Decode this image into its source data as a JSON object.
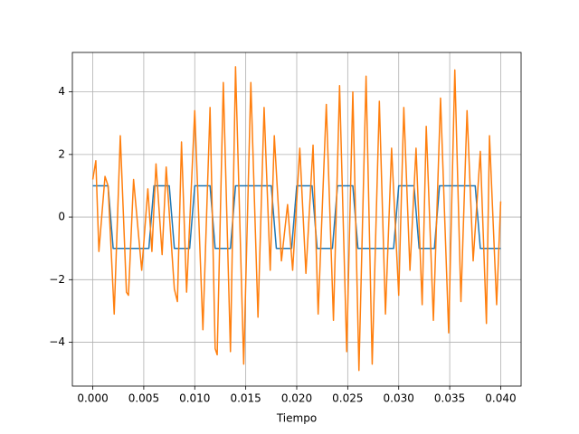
{
  "chart_data": {
    "type": "line",
    "xlabel": "Tiempo",
    "xlim": [
      -0.002,
      0.042
    ],
    "ylim": [
      -5.4,
      5.26
    ],
    "xticks": [
      {
        "value": 0,
        "label": "0.000"
      },
      {
        "value": 0.005,
        "label": "0.005"
      },
      {
        "value": 0.01,
        "label": "0.010"
      },
      {
        "value": 0.015,
        "label": "0.015"
      },
      {
        "value": 0.02,
        "label": "0.020"
      },
      {
        "value": 0.025,
        "label": "0.025"
      },
      {
        "value": 0.03,
        "label": "0.030"
      },
      {
        "value": 0.035,
        "label": "0.035"
      },
      {
        "value": 0.04,
        "label": "0.040"
      }
    ],
    "yticks": [
      {
        "value": -4,
        "label": "−4"
      },
      {
        "value": -2,
        "label": "−2"
      },
      0,
      2,
      4
    ],
    "grid": true,
    "series": [
      {
        "color": "#1f77b4",
        "x": [
          0,
          0.0005,
          0.001,
          0.0015,
          0.002,
          0.0025,
          0.003,
          0.0035,
          0.004,
          0.0045,
          0.005,
          0.0055,
          0.006,
          0.0065,
          0.007,
          0.0075,
          0.008,
          0.0085,
          0.009,
          0.0095,
          0.01,
          0.0105,
          0.011,
          0.0115,
          0.012,
          0.0125,
          0.013,
          0.0135,
          0.014,
          0.0145,
          0.015,
          0.0155,
          0.016,
          0.0165,
          0.017,
          0.0175,
          0.018,
          0.0185,
          0.019,
          0.0195,
          0.02,
          0.0205,
          0.021,
          0.0215,
          0.022,
          0.0225,
          0.023,
          0.0235,
          0.024,
          0.0245,
          0.025,
          0.0255,
          0.026,
          0.0265,
          0.027,
          0.0275,
          0.028,
          0.0285,
          0.029,
          0.0295,
          0.03,
          0.0305,
          0.031,
          0.0315,
          0.032,
          0.0325,
          0.033,
          0.0335,
          0.034,
          0.0345,
          0.035,
          0.0355,
          0.036,
          0.0365,
          0.037,
          0.0375,
          0.038,
          0.0385,
          0.039,
          0.0395,
          0.04
        ],
        "values": [
          1,
          1,
          1,
          1,
          -1,
          -1,
          -1,
          -1,
          -1,
          -1,
          -1,
          -1,
          1,
          1,
          1,
          1,
          -1,
          -1,
          -1,
          -1,
          1,
          1,
          1,
          1,
          -1,
          -1,
          -1,
          -1,
          1,
          1,
          1,
          1,
          1,
          1,
          1,
          1,
          -1,
          -1,
          -1,
          -1,
          1,
          1,
          1,
          1,
          -1,
          -1,
          -1,
          -1,
          1,
          1,
          1,
          1,
          -1,
          -1,
          -1,
          -1,
          -1,
          -1,
          -1,
          -1,
          1,
          1,
          1,
          1,
          -1,
          -1,
          -1,
          -1,
          1,
          1,
          1,
          1,
          1,
          1,
          1,
          1,
          -1,
          -1,
          -1,
          -1,
          -1
        ]
      },
      {
        "color": "#ff7f0e",
        "x": [
          0,
          0.0003,
          0.0006,
          0.0012,
          0.0015,
          0.002,
          0.0021,
          0.0027,
          0.0033,
          0.0035,
          0.004,
          0.0048,
          0.0054,
          0.0058,
          0.0062,
          0.0068,
          0.0072,
          0.008,
          0.0083,
          0.0087,
          0.0092,
          0.01,
          0.0108,
          0.0115,
          0.012,
          0.0122,
          0.0128,
          0.0135,
          0.014,
          0.0148,
          0.0155,
          0.0162,
          0.0168,
          0.0174,
          0.0178,
          0.0185,
          0.0191,
          0.0196,
          0.0203,
          0.0209,
          0.0216,
          0.0221,
          0.0229,
          0.0236,
          0.0242,
          0.0249,
          0.0255,
          0.0261,
          0.0268,
          0.0274,
          0.0281,
          0.0287,
          0.0293,
          0.03,
          0.0305,
          0.0311,
          0.0317,
          0.0323,
          0.0327,
          0.0334,
          0.0341,
          0.0349,
          0.0355,
          0.0361,
          0.0367,
          0.0373,
          0.038,
          0.0386,
          0.0389,
          0.0396,
          0.04
        ],
        "values": [
          1.2,
          1.8,
          -1.1,
          1.3,
          1.0,
          -2.4,
          -3.1,
          2.6,
          -2.4,
          -2.5,
          1.2,
          -1.7,
          0.9,
          -1.1,
          1.7,
          -1.2,
          1.6,
          -2.3,
          -2.7,
          2.4,
          -2.4,
          3.4,
          -3.6,
          3.5,
          -4.2,
          -4.4,
          4.3,
          -4.3,
          4.8,
          -4.7,
          4.3,
          -3.2,
          3.5,
          -1.7,
          2.6,
          -1.4,
          0.4,
          -1.7,
          2.2,
          -1.8,
          2.3,
          -3.1,
          3.6,
          -3.3,
          4.2,
          -4.3,
          4.0,
          -4.9,
          4.5,
          -4.7,
          3.7,
          -3.1,
          2.2,
          -2.5,
          3.5,
          -1.7,
          2.2,
          -2.8,
          2.9,
          -3.3,
          3.8,
          -3.7,
          4.7,
          -2.7,
          3.4,
          -1.4,
          2.1,
          -3.4,
          2.6,
          -2.8,
          0.5
        ]
      }
    ]
  }
}
